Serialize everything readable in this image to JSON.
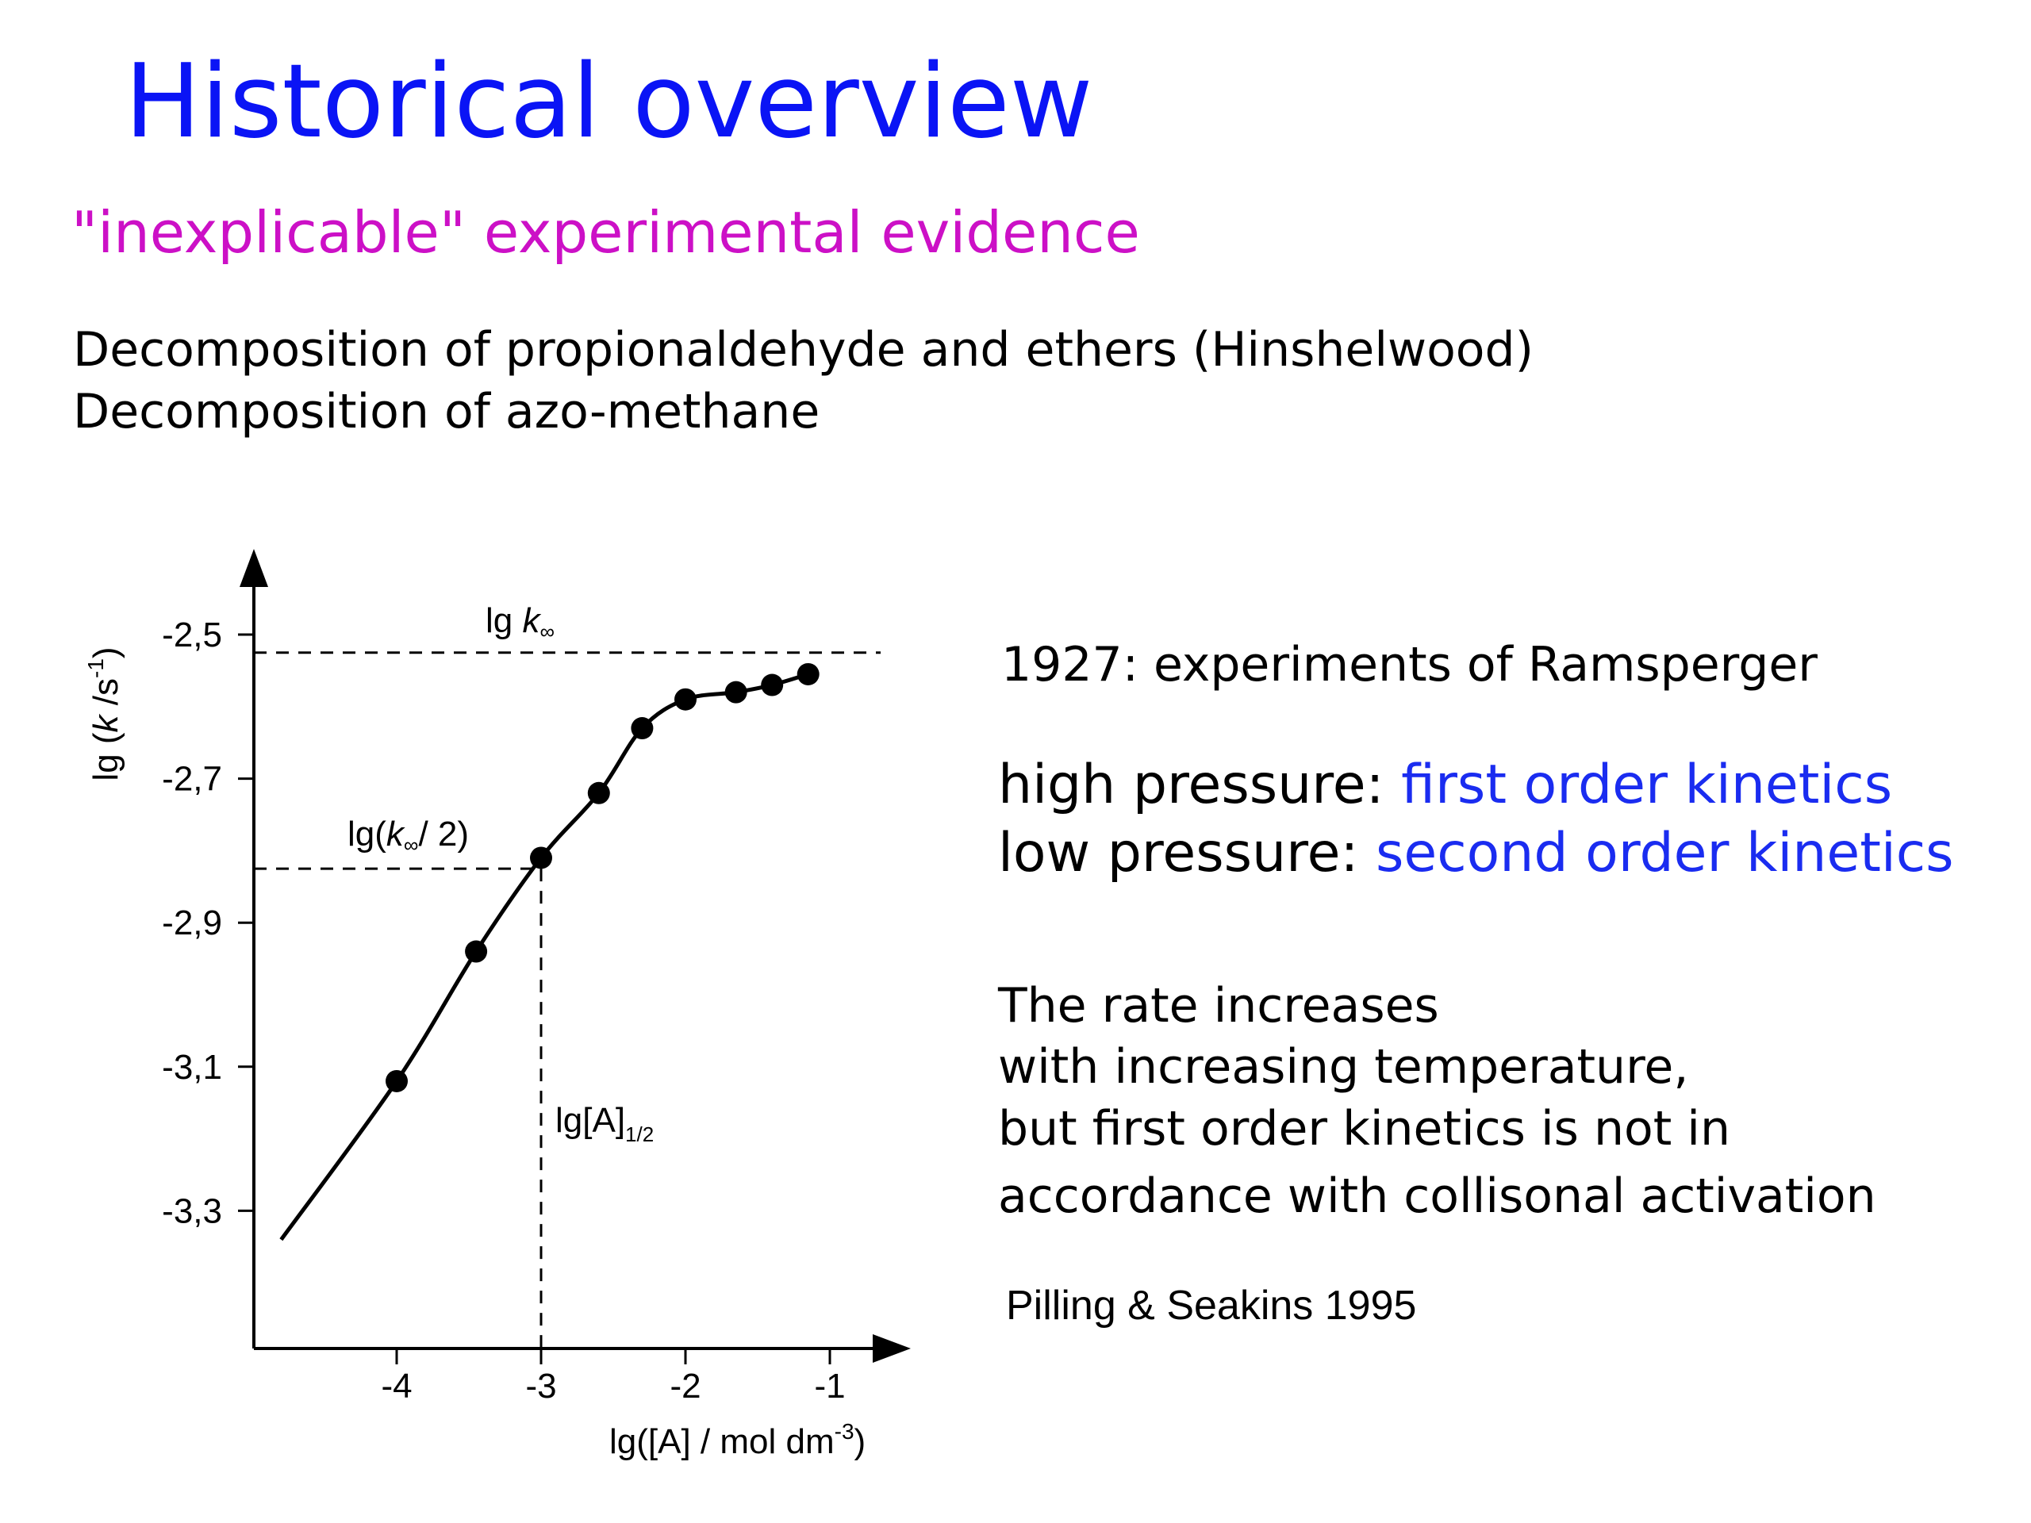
{
  "slide": {
    "title": "Historical overview",
    "subtitle": "\"inexplicable\" experimental evidence",
    "lines": [
      "Decomposition of propionaldehyde and ethers (Hinshelwood)",
      "Decomposition  of azo-methane"
    ],
    "ramsperger": "1927: experiments of Ramsperger",
    "high_pressure": {
      "prefix": "high pressure: ",
      "value": "first order kinetics"
    },
    "low_pressure": {
      "prefix": "low pressure: ",
      "value": "second order kinetics"
    },
    "rate_text": [
      "The rate increases",
      "with increasing temperature,",
      "but first order kinetics is not in",
      "accordance with collisonal activation"
    ],
    "citation": "Pilling & Seakins 1995"
  },
  "colors": {
    "title": "#0a14f5",
    "subtitle": "#cc10c6",
    "highlight": "#1a2cf0"
  },
  "chart_data": {
    "type": "scatter",
    "x": [
      -4.0,
      -3.45,
      -3.0,
      -2.6,
      -2.3,
      -2.0,
      -1.65,
      -1.4,
      -1.15
    ],
    "y": [
      -3.12,
      -2.94,
      -2.81,
      -2.72,
      -2.63,
      -2.59,
      -2.58,
      -2.57,
      -2.555
    ],
    "curve": {
      "x": [
        -4.8,
        -4.0,
        -3.45,
        -3.0,
        -2.6,
        -2.3,
        -2.0,
        -1.65,
        -1.4,
        -1.15
      ],
      "y": [
        -3.34,
        -3.12,
        -2.94,
        -2.81,
        -2.72,
        -2.63,
        -2.59,
        -2.58,
        -2.57,
        -2.555
      ]
    },
    "xticks": [
      -4,
      -3,
      -2,
      -1
    ],
    "xtick_labels": [
      "-4",
      "-3",
      "-2",
      "-1"
    ],
    "yticks": [
      -2.5,
      -2.7,
      -2.9,
      -3.1,
      -3.3
    ],
    "ytick_labels": [
      "-2,5",
      "-2,7",
      "-2,9",
      "-3,1",
      "-3,3"
    ],
    "xlim": [
      -5.0,
      -0.7
    ],
    "ylim": [
      -3.5,
      -2.45
    ],
    "grid": false,
    "xlabel": {
      "main": "lg([A] / mol dm",
      "sup": "-3",
      "end": ")"
    },
    "ylabel": {
      "pre": "lg (",
      "k": "k",
      "mid": " /s",
      "sup": "-1",
      "end": ")"
    },
    "k_inf_line": {
      "y": -2.525,
      "label_pre": "lg ",
      "label_k": "k",
      "label_sub": "∞"
    },
    "k_half_line": {
      "y": -2.825,
      "x_end": -3.0,
      "label_pre": "lg(",
      "label_k": "k",
      "label_sub": "∞",
      "label_end": "/ 2)"
    },
    "a_half_line": {
      "x": -3.0,
      "label_main": "lg[A]",
      "label_sub": "1/2"
    }
  }
}
